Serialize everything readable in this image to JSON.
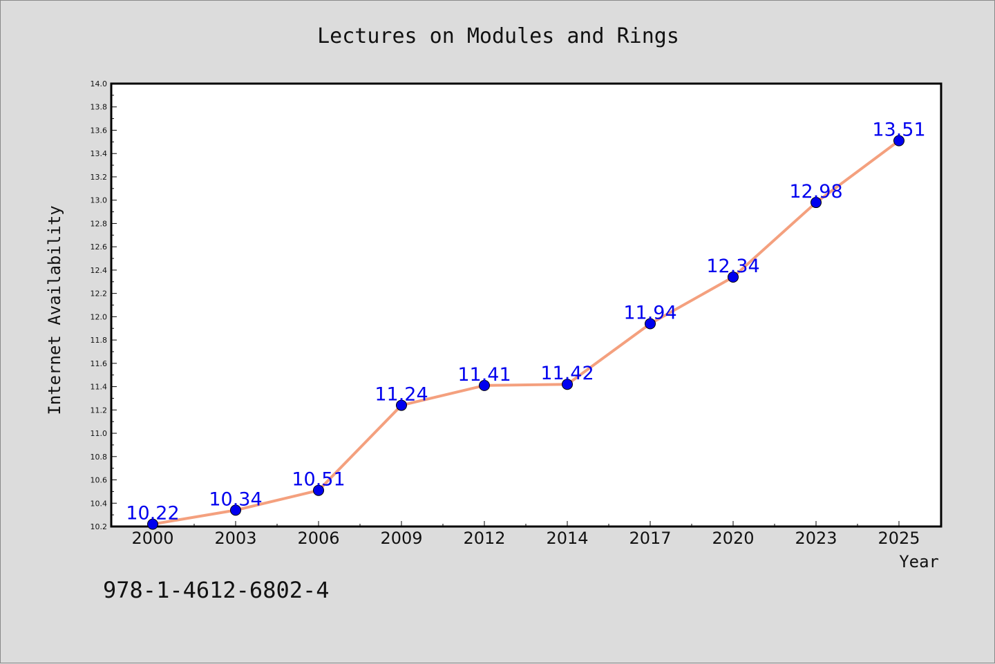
{
  "chart_data": {
    "type": "line",
    "title": "Lectures on Modules and Rings",
    "xlabel": "Year",
    "ylabel": "Internet Availability",
    "x": [
      "2000",
      "2003",
      "2006",
      "2009",
      "2012",
      "2014",
      "2017",
      "2020",
      "2023",
      "2025"
    ],
    "values": [
      10.22,
      10.34,
      10.51,
      11.24,
      11.41,
      11.42,
      11.94,
      12.34,
      12.98,
      13.51
    ],
    "data_labels": [
      "10.22",
      "10.34",
      "10.51",
      "11.24",
      "11.41",
      "11.42",
      "11.94",
      "12.34",
      "12.98",
      "13.51"
    ],
    "y_ticks": [
      "10.2",
      "10.4",
      "10.6",
      "10.8",
      "11.0",
      "11.2",
      "11.4",
      "11.6",
      "11.8",
      "12.0",
      "12.2",
      "12.4",
      "12.6",
      "12.8",
      "13.0",
      "13.2",
      "13.4",
      "13.6",
      "13.8",
      "14.0"
    ],
    "ylim": [
      10.2,
      14.0
    ],
    "grid": false,
    "legend": "none",
    "line_color": "#f4a07e",
    "marker_color": "#0000ee",
    "label_color": "#0000ee"
  },
  "footer": {
    "isbn": "978-1-4612-6802-4"
  }
}
